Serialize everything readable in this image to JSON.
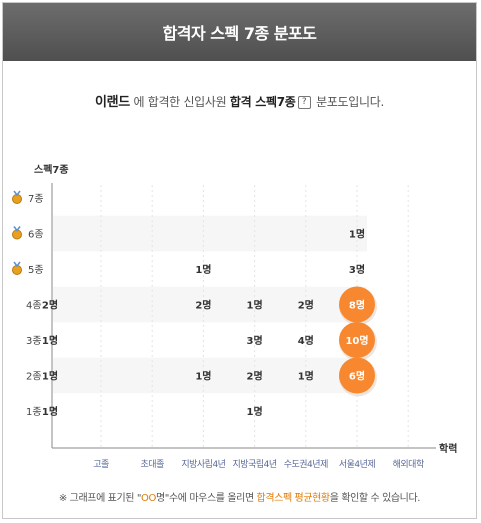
{
  "header": {
    "title": "합격자 스펙 7종 분포도"
  },
  "intro": {
    "brand": "이랜드",
    "text1": " 에 합격한 신입사원 ",
    "highlight": "합격 스펙7종",
    "icon_name": "help-icon",
    "icon_glyph": "?",
    "text2": " 분포도입니다."
  },
  "footer": {
    "part1": "※ 그래프에 표기된 \"",
    "circles": "OO",
    "part2": "명\"수에 마우스를 올리면 ",
    "highlight": "합격스펙 평균현황",
    "part3": "을 확인할 수 있습니다."
  },
  "colors": {
    "header": "#5a5a5a",
    "bubble": "#f7882f",
    "axis": "#888888",
    "band": "#f6f6f6"
  },
  "chart_data": {
    "type": "scatter",
    "ylabel": "스펙7종",
    "xlabel": "학력",
    "y_categories": [
      "1종",
      "2종",
      "3종",
      "4종",
      "5종",
      "6종",
      "7종"
    ],
    "medal_levels": [
      "5종",
      "6종",
      "7종"
    ],
    "x_categories": [
      "고졸",
      "초대졸",
      "지방사립4년",
      "지방국립4년",
      "수도권4년제",
      "서울4년제",
      "해외대학"
    ],
    "points": [
      {
        "x": "고졸",
        "y": "4종",
        "label": "2명",
        "highlight": false
      },
      {
        "x": "고졸",
        "y": "3종",
        "label": "1명",
        "highlight": false
      },
      {
        "x": "고졸",
        "y": "2종",
        "label": "1명",
        "highlight": false
      },
      {
        "x": "고졸",
        "y": "1종",
        "label": "1명",
        "highlight": false
      },
      {
        "x": "지방사립4년",
        "y": "5종",
        "label": "1명",
        "highlight": false
      },
      {
        "x": "지방사립4년",
        "y": "4종",
        "label": "2명",
        "highlight": false
      },
      {
        "x": "지방사립4년",
        "y": "2종",
        "label": "1명",
        "highlight": false
      },
      {
        "x": "지방국립4년",
        "y": "4종",
        "label": "1명",
        "highlight": false
      },
      {
        "x": "지방국립4년",
        "y": "3종",
        "label": "3명",
        "highlight": false
      },
      {
        "x": "지방국립4년",
        "y": "2종",
        "label": "2명",
        "highlight": false
      },
      {
        "x": "지방국립4년",
        "y": "1종",
        "label": "1명",
        "highlight": false
      },
      {
        "x": "수도권4년제",
        "y": "4종",
        "label": "2명",
        "highlight": false
      },
      {
        "x": "수도권4년제",
        "y": "3종",
        "label": "4명",
        "highlight": false
      },
      {
        "x": "수도권4년제",
        "y": "2종",
        "label": "1명",
        "highlight": false
      },
      {
        "x": "서울4년제",
        "y": "6종",
        "label": "1명",
        "highlight": false
      },
      {
        "x": "서울4년제",
        "y": "5종",
        "label": "3명",
        "highlight": false
      },
      {
        "x": "서울4년제",
        "y": "4종",
        "label": "8명",
        "highlight": true
      },
      {
        "x": "서울4년제",
        "y": "3종",
        "label": "10명",
        "highlight": true
      },
      {
        "x": "서울4년제",
        "y": "2종",
        "label": "6명",
        "highlight": true
      }
    ]
  }
}
